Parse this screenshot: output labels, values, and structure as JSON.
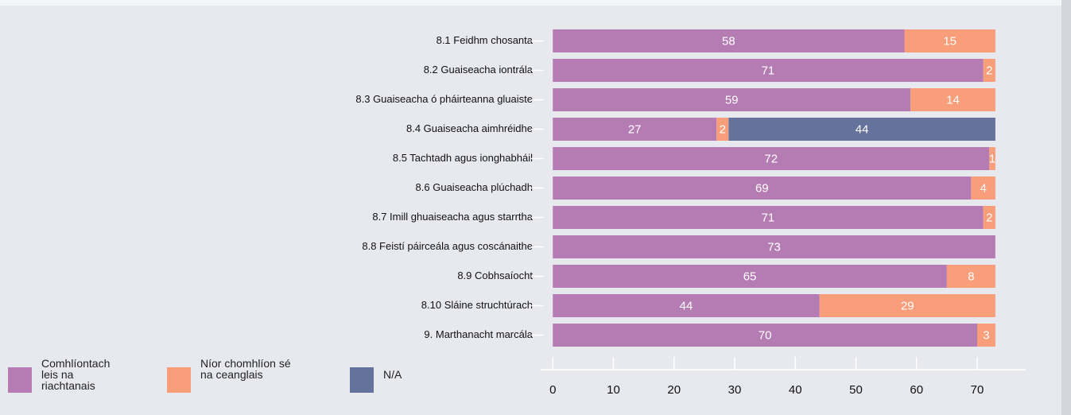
{
  "chart_data": {
    "type": "stacked_barh",
    "categories": [
      "8.1 Feidhm chosanta",
      "8.2 Guaiseacha iontrála",
      "8.3 Guaiseacha ó pháirteanna gluaiste",
      "8.4 Guaiseacha aimhréidhe",
      "8.5 Tachtadh agus ionghabháil",
      "8.6 Guaiseacha plúchadh",
      "8.7 Imill ghuaiseacha agus starrtha",
      "8.8 Feistí páirceála agus coscánaithe",
      "8.9 Cobhsaíocht",
      "8.10 Sláine struchtúrach",
      "9. Marthanacht marcála"
    ],
    "series": [
      {
        "name": "Comhlíontach leis na riachtanais",
        "color": "#b57bb3",
        "values": [
          58,
          71,
          59,
          27,
          72,
          69,
          71,
          73,
          65,
          44,
          70
        ]
      },
      {
        "name": "Níor chomhlíon sé na ceanglais",
        "color": "#f99e7a",
        "values": [
          15,
          2,
          14,
          2,
          1,
          4,
          2,
          null,
          8,
          29,
          3
        ]
      },
      {
        "name": "N/A",
        "color": "#65729c",
        "values": [
          null,
          null,
          null,
          44,
          null,
          null,
          null,
          null,
          null,
          null,
          null
        ]
      }
    ],
    "xlim": [
      -2,
      78
    ],
    "xticks": [
      0,
      10,
      20,
      30,
      40,
      50,
      60,
      70
    ]
  }
}
